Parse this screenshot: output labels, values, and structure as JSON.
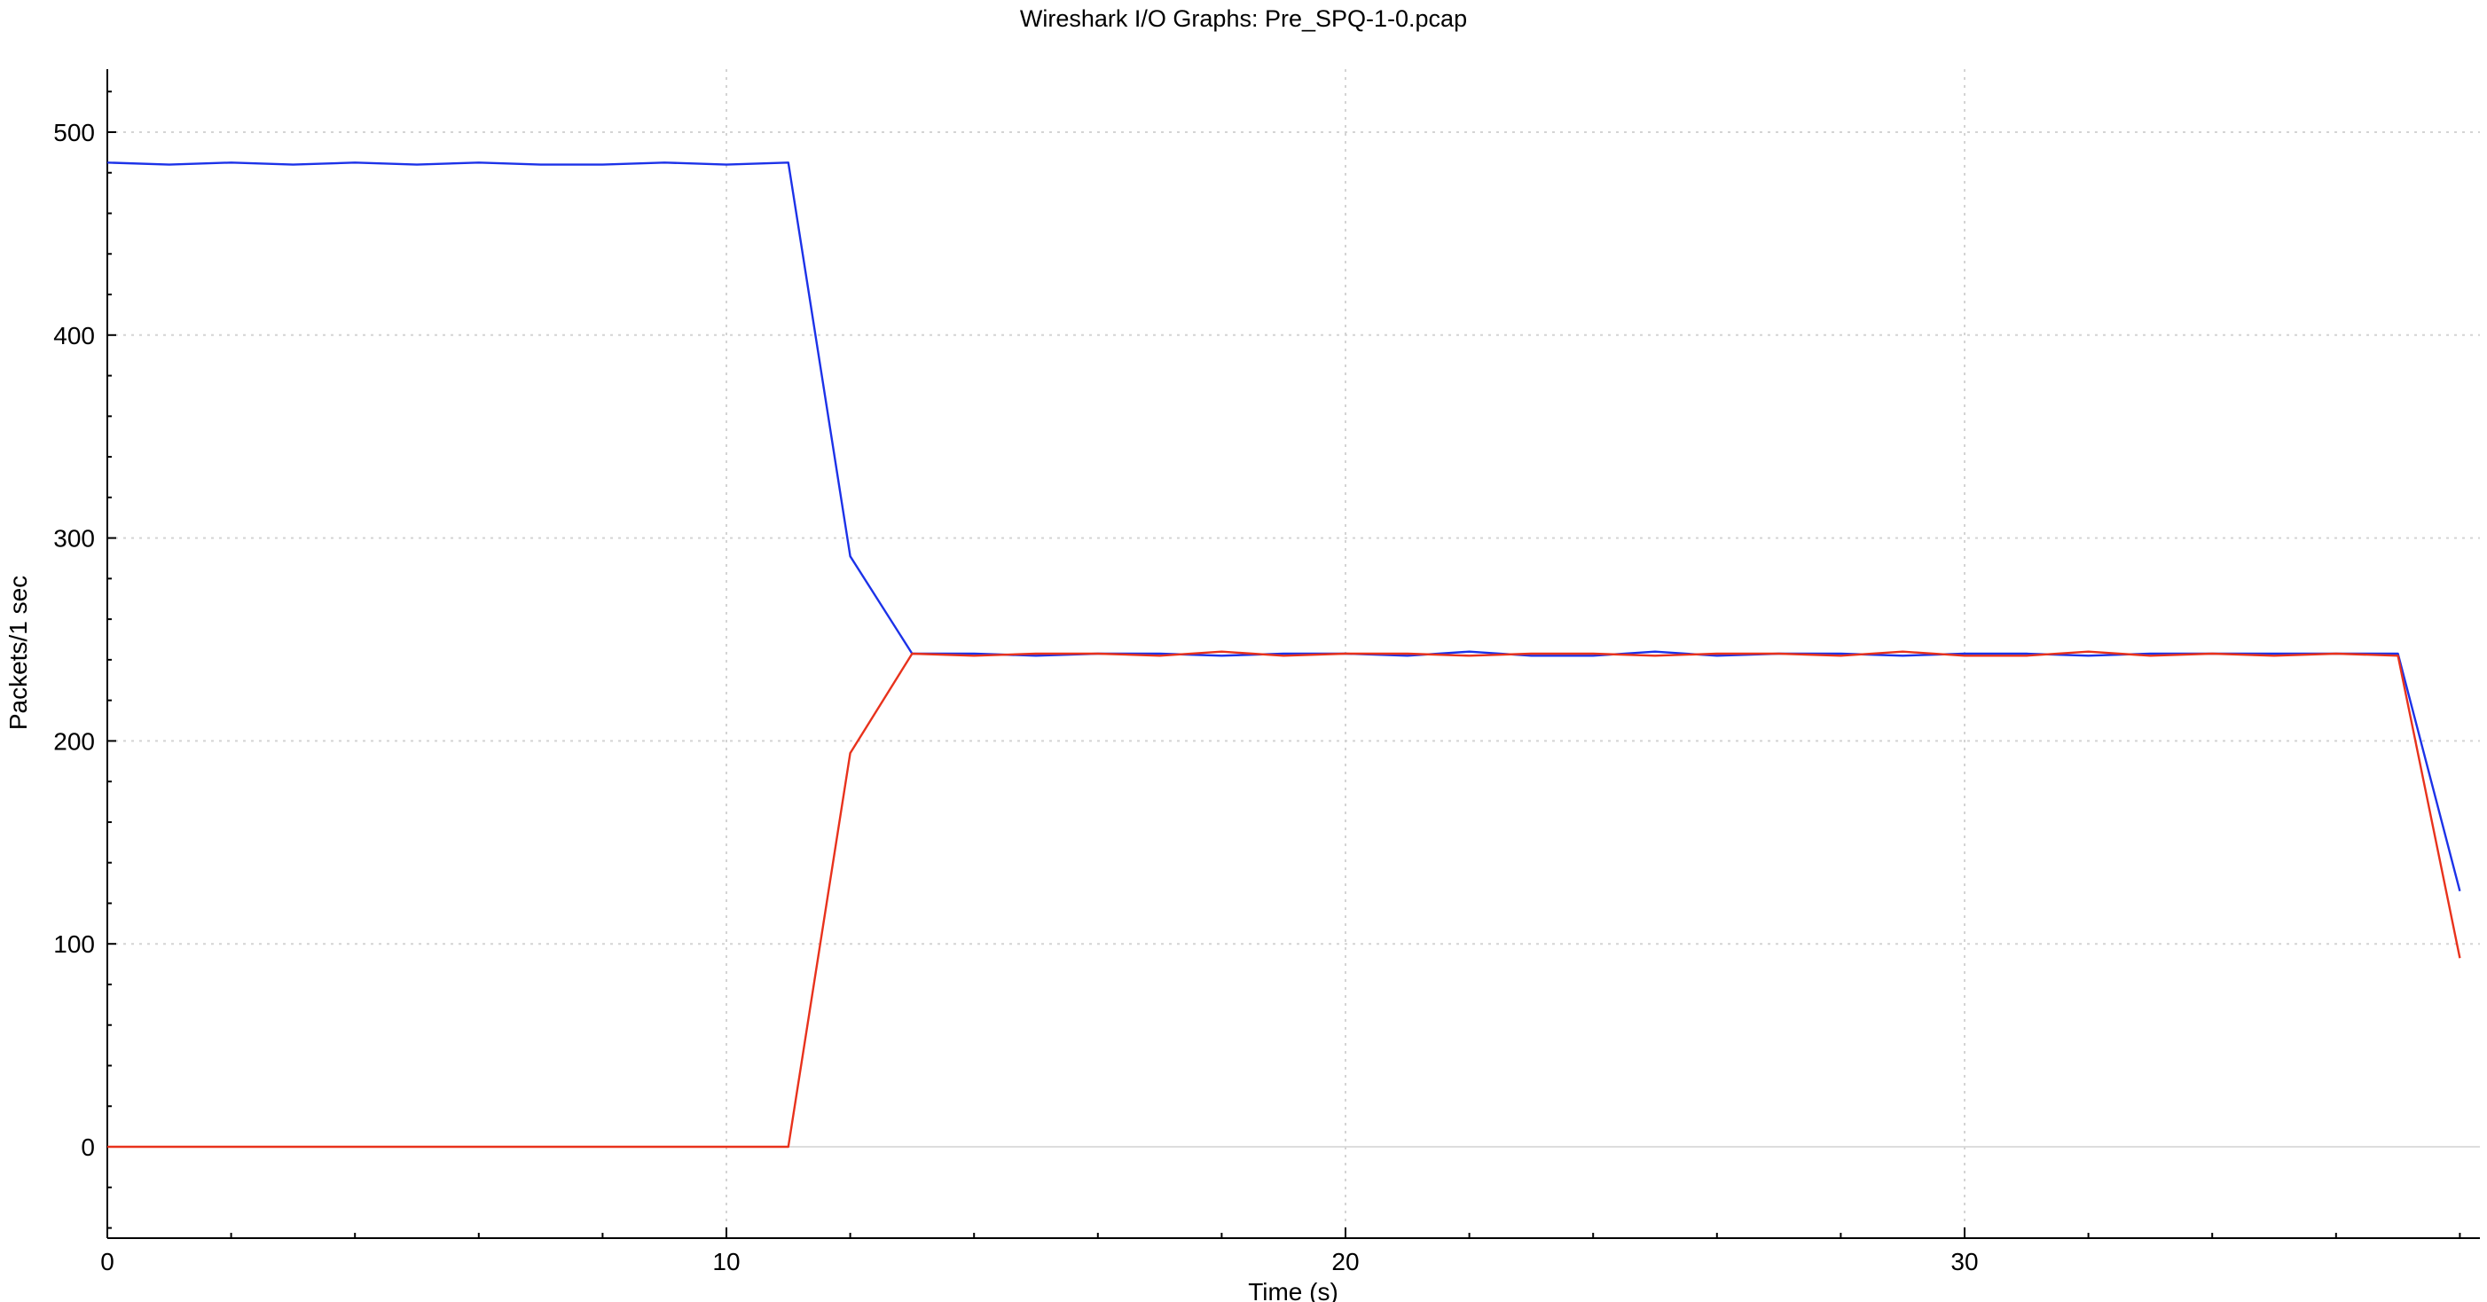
{
  "chart_data": {
    "type": "line",
    "title": "Wireshark I/O Graphs: Pre_SPQ-1-0.pcap",
    "xlabel": "Time (s)",
    "ylabel": "Packets/1 sec",
    "xlim": [
      0,
      38.6
    ],
    "ylim": [
      -44,
      532
    ],
    "x_ticks": [
      0,
      10,
      20,
      30
    ],
    "y_ticks": [
      0,
      100,
      200,
      300,
      400,
      500
    ],
    "grid": true,
    "legend": "none",
    "series": [
      {
        "color": "#1c32e8",
        "x": [
          0,
          1,
          2,
          3,
          4,
          5,
          6,
          7,
          8,
          9,
          10,
          11,
          12,
          13,
          14,
          15,
          16,
          17,
          18,
          19,
          20,
          21,
          22,
          23,
          24,
          25,
          26,
          27,
          28,
          29,
          30,
          31,
          32,
          33,
          34,
          35,
          36,
          37,
          38
        ],
        "values": [
          485,
          484,
          485,
          484,
          485,
          484,
          485,
          484,
          484,
          485,
          484,
          485,
          291,
          243,
          243,
          242,
          243,
          243,
          242,
          243,
          243,
          242,
          244,
          242,
          242,
          244,
          242,
          243,
          243,
          242,
          243,
          243,
          242,
          243,
          243,
          243,
          243,
          243,
          126
        ]
      },
      {
        "color": "#e8321c",
        "x": [
          0,
          1,
          2,
          3,
          4,
          5,
          6,
          7,
          8,
          9,
          10,
          11,
          12,
          13,
          14,
          15,
          16,
          17,
          18,
          19,
          20,
          21,
          22,
          23,
          24,
          25,
          26,
          27,
          28,
          29,
          30,
          31,
          32,
          33,
          34,
          35,
          36,
          37,
          38
        ],
        "values": [
          0,
          0,
          0,
          0,
          0,
          0,
          0,
          0,
          0,
          0,
          0,
          0,
          194,
          243,
          242,
          243,
          243,
          242,
          244,
          242,
          243,
          243,
          242,
          243,
          243,
          242,
          243,
          243,
          242,
          244,
          242,
          242,
          244,
          242,
          243,
          242,
          243,
          242,
          93
        ]
      }
    ]
  }
}
